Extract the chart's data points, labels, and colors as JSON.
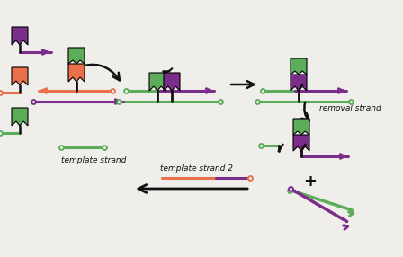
{
  "bg_color": "#f0eeea",
  "purple": "#7B2D8B",
  "green": "#5BAD5A",
  "orange": "#E8704A",
  "dark": "#111111",
  "label_template": "template strand",
  "label_template2": "template strand 2",
  "label_removal": "removal strand",
  "lw_strand": 2.2,
  "lw_arrow": 1.8
}
